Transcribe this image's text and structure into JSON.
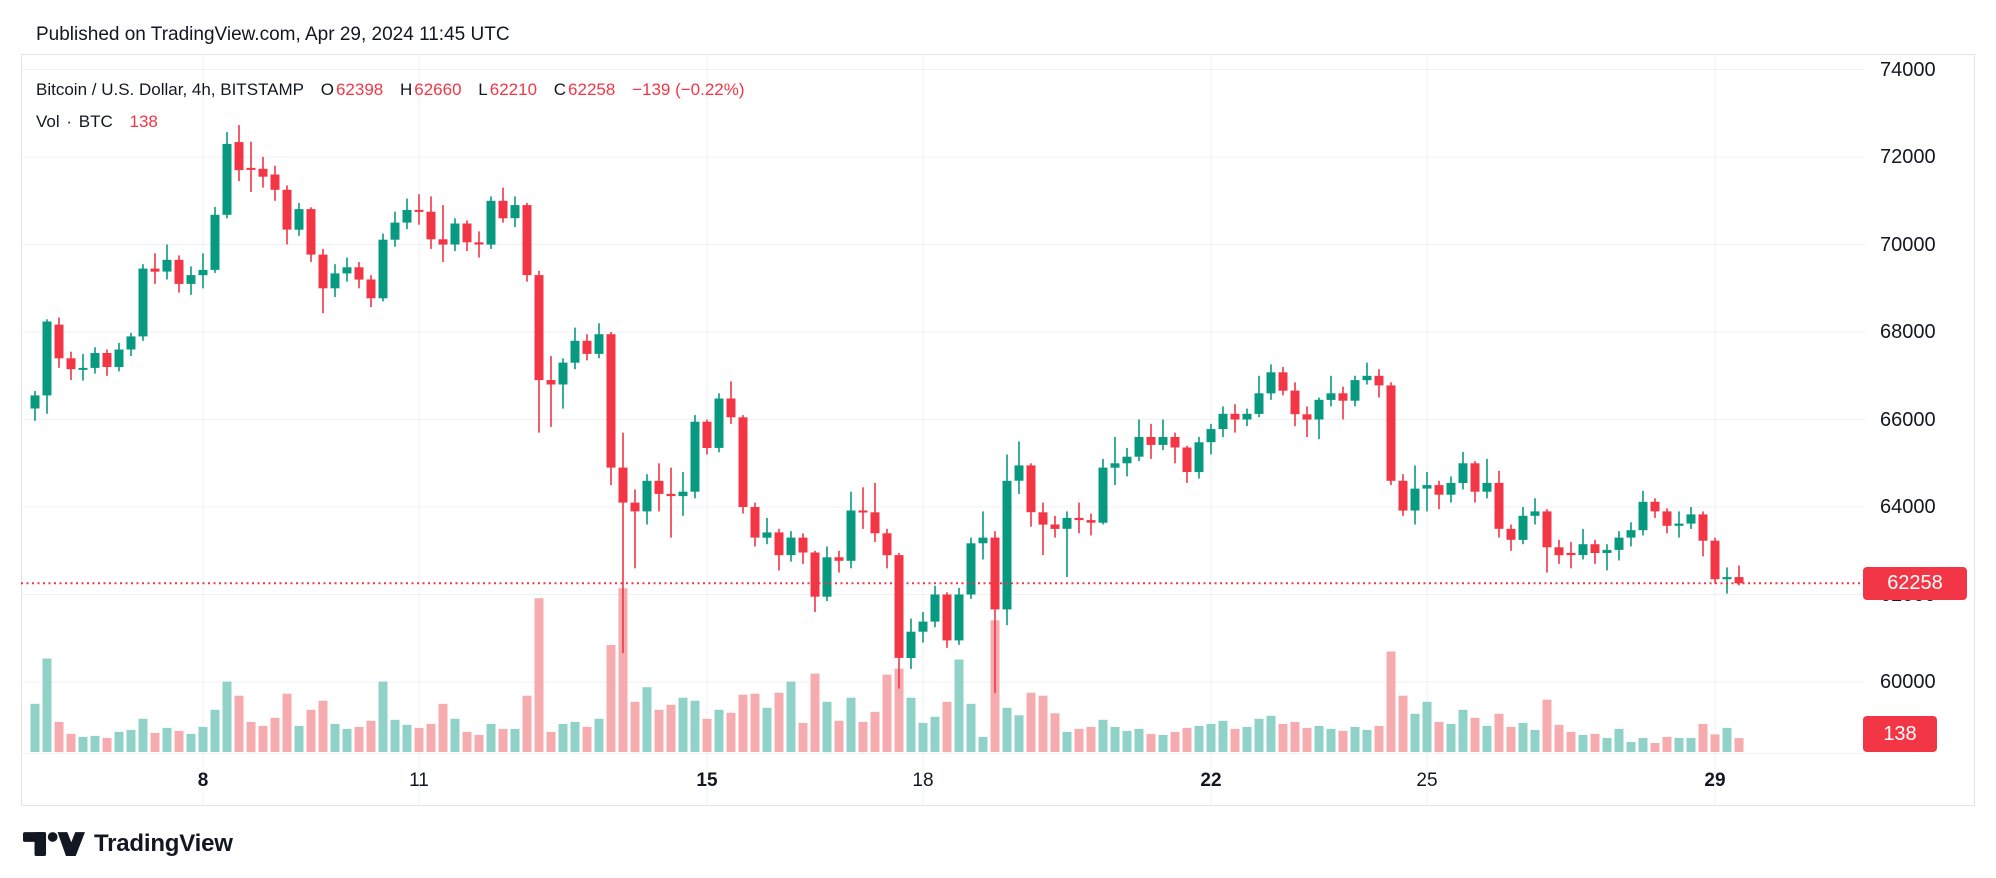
{
  "header": {
    "published": "Published on TradingView.com, Apr 29, 2024 11:45 UTC"
  },
  "legend": {
    "series_title": "Bitcoin / U.S. Dollar, 4h, BITSTAMP",
    "o_label": "O",
    "o_value": "62398",
    "h_label": "H",
    "h_value": "62660",
    "l_label": "L",
    "l_value": "62210",
    "c_label": "C",
    "c_value": "62258",
    "change": "−139 (−0.22%)",
    "vol_label": "Vol",
    "vol_sep": "·",
    "vol_unit": "BTC",
    "vol_value": "138"
  },
  "axes": {
    "price_label": "62258",
    "volume_label": "138"
  },
  "footer": {
    "logo_text": "TradingView"
  },
  "colors": {
    "up": "#089981",
    "down": "#f23645",
    "volume_up": "#90d2c7",
    "volume_down": "#f6abae",
    "accent_red": "#f23645",
    "grid": "#edf0f4",
    "border": "#e0e3eb",
    "text": "#131722"
  },
  "chart_data": {
    "type": "candlestick",
    "title": "Bitcoin / U.S. Dollar",
    "exchange": "BITSTAMP",
    "interval": "4h",
    "volume_unit": "BTC",
    "last_price": 62258,
    "last_change": -139,
    "last_change_pct": -0.22,
    "last_volume": 138,
    "ylim_visible": [
      59500,
      74400
    ],
    "y_gridlines": [
      74000,
      72000,
      70000,
      68000,
      66000,
      64000,
      62000,
      60000
    ],
    "x_ticks": [
      {
        "label": "8",
        "idx": 14,
        "bold": true
      },
      {
        "label": "11",
        "idx": 32,
        "bold": false
      },
      {
        "label": "15",
        "idx": 56,
        "bold": true
      },
      {
        "label": "18",
        "idx": 74,
        "bold": false
      },
      {
        "label": "22",
        "idx": 98,
        "bold": true
      },
      {
        "label": "25",
        "idx": 116,
        "bold": false
      },
      {
        "label": "29",
        "idx": 140,
        "bold": true
      }
    ],
    "candles": [
      [
        "Apr 5 16:00",
        66250,
        66650,
        65970,
        66550,
        480
      ],
      [
        "Apr 5 20:00",
        66550,
        68290,
        66130,
        68240,
        930
      ],
      [
        "Apr 6 00:00",
        68170,
        68330,
        67180,
        67400,
        300
      ],
      [
        "Apr 6 04:00",
        67400,
        67550,
        66900,
        67150,
        180
      ],
      [
        "Apr 6 08:00",
        67150,
        67500,
        66890,
        67180,
        150
      ],
      [
        "Apr 6 12:00",
        67180,
        67650,
        67050,
        67520,
        160
      ],
      [
        "Apr 6 16:00",
        67520,
        67600,
        67000,
        67200,
        140
      ],
      [
        "Apr 6 20:00",
        67200,
        67750,
        67100,
        67600,
        200
      ],
      [
        "Apr 7 00:00",
        67600,
        67980,
        67450,
        67900,
        220
      ],
      [
        "Apr 7 04:00",
        67900,
        69550,
        67800,
        69450,
        330
      ],
      [
        "Apr 7 08:00",
        69450,
        69800,
        69100,
        69380,
        190
      ],
      [
        "Apr 7 12:00",
        69380,
        70000,
        69200,
        69650,
        240
      ],
      [
        "Apr 7 16:00",
        69650,
        69750,
        68900,
        69100,
        210
      ],
      [
        "Apr 7 20:00",
        69100,
        69500,
        68850,
        69300,
        180
      ],
      [
        "Apr 8 00:00",
        69300,
        69800,
        69000,
        69420,
        250
      ],
      [
        "Apr 8 04:00",
        69420,
        70860,
        69350,
        70680,
        420
      ],
      [
        "Apr 8 08:00",
        70680,
        72570,
        70600,
        72300,
        700
      ],
      [
        "Apr 8 12:00",
        72340,
        72730,
        71450,
        71700,
        560
      ],
      [
        "Apr 8 16:00",
        71750,
        72350,
        71200,
        71730,
        300
      ],
      [
        "Apr 8 20:00",
        71730,
        72000,
        71300,
        71550,
        260
      ],
      [
        "Apr 9 00:00",
        71600,
        71800,
        71000,
        71250,
        340
      ],
      [
        "Apr 9 04:00",
        71250,
        71350,
        70000,
        70340,
        580
      ],
      [
        "Apr 9 08:00",
        70340,
        70950,
        70200,
        70810,
        260
      ],
      [
        "Apr 9 12:00",
        70810,
        70850,
        69600,
        69770,
        420
      ],
      [
        "Apr 9 16:00",
        69770,
        69900,
        68430,
        69000,
        510
      ],
      [
        "Apr 9 20:00",
        69000,
        69550,
        68800,
        69340,
        280
      ],
      [
        "Apr 10 00:00",
        69340,
        69700,
        69150,
        69480,
        230
      ],
      [
        "Apr 10 04:00",
        69480,
        69600,
        69000,
        69200,
        250
      ],
      [
        "Apr 10 08:00",
        69200,
        69300,
        68570,
        68770,
        310
      ],
      [
        "Apr 10 12:00",
        68770,
        70250,
        68700,
        70110,
        700
      ],
      [
        "Apr 10 16:00",
        70110,
        70750,
        69950,
        70500,
        320
      ],
      [
        "Apr 10 20:00",
        70500,
        71050,
        70350,
        70790,
        270
      ],
      [
        "Apr 11 00:00",
        70790,
        71150,
        70450,
        70750,
        240
      ],
      [
        "Apr 11 04:00",
        70750,
        71100,
        69900,
        70120,
        280
      ],
      [
        "Apr 11 08:00",
        70120,
        70900,
        69600,
        70000,
        480
      ],
      [
        "Apr 11 12:00",
        70000,
        70600,
        69850,
        70480,
        330
      ],
      [
        "Apr 11 16:00",
        70480,
        70550,
        69850,
        70050,
        200
      ],
      [
        "Apr 11 20:00",
        70050,
        70300,
        69700,
        70000,
        170
      ],
      [
        "Apr 12 00:00",
        70000,
        71100,
        69900,
        71000,
        280
      ],
      [
        "Apr 12 04:00",
        71000,
        71300,
        70500,
        70600,
        230
      ],
      [
        "Apr 12 08:00",
        70600,
        71100,
        70400,
        70900,
        230
      ],
      [
        "Apr 12 12:00",
        70900,
        70950,
        69150,
        69300,
        560
      ],
      [
        "Apr 12 16:00",
        69300,
        69400,
        65700,
        66900,
        1530
      ],
      [
        "Apr 12 20:00",
        66900,
        67450,
        65830,
        66800,
        200
      ],
      [
        "Apr 13 00:00",
        66800,
        67400,
        66250,
        67300,
        280
      ],
      [
        "Apr 13 04:00",
        67300,
        68100,
        67150,
        67800,
        300
      ],
      [
        "Apr 13 08:00",
        67800,
        67950,
        67350,
        67500,
        250
      ],
      [
        "Apr 13 12:00",
        67500,
        68200,
        67400,
        67950,
        330
      ],
      [
        "Apr 13 16:00",
        67950,
        68000,
        64500,
        64900,
        1065
      ],
      [
        "Apr 13 20:00",
        64900,
        65700,
        60660,
        64100,
        1630
      ],
      [
        "Apr 14 00:00",
        64100,
        64400,
        62600,
        63900,
        500
      ],
      [
        "Apr 14 04:00",
        63900,
        64750,
        63600,
        64600,
        645
      ],
      [
        "Apr 14 08:00",
        64600,
        65000,
        63900,
        64300,
        420
      ],
      [
        "Apr 14 12:00",
        64300,
        64900,
        63300,
        64250,
        470
      ],
      [
        "Apr 14 16:00",
        64250,
        64800,
        63800,
        64350,
        540
      ],
      [
        "Apr 14 20:00",
        64350,
        66100,
        64200,
        65950,
        510
      ],
      [
        "Apr 15 00:00",
        65950,
        66000,
        65200,
        65350,
        330
      ],
      [
        "Apr 15 04:00",
        65350,
        66600,
        65250,
        66480,
        420
      ],
      [
        "Apr 15 08:00",
        66480,
        66870,
        65900,
        66050,
        390
      ],
      [
        "Apr 15 12:00",
        66050,
        66100,
        63850,
        64000,
        570
      ],
      [
        "Apr 15 16:00",
        64000,
        64100,
        63100,
        63300,
        580
      ],
      [
        "Apr 15 20:00",
        63300,
        63750,
        63150,
        63420,
        440
      ],
      [
        "Apr 16 00:00",
        63420,
        63500,
        62550,
        62900,
        590
      ],
      [
        "Apr 16 04:00",
        62900,
        63450,
        62750,
        63300,
        700
      ],
      [
        "Apr 16 08:00",
        63300,
        63400,
        62700,
        62960,
        290
      ],
      [
        "Apr 16 12:00",
        62960,
        63000,
        61600,
        61950,
        780
      ],
      [
        "Apr 16 16:00",
        61950,
        63100,
        61850,
        62850,
        500
      ],
      [
        "Apr 16 20:00",
        62850,
        63000,
        62500,
        62770,
        310
      ],
      [
        "Apr 17 00:00",
        62770,
        64350,
        62600,
        63920,
        540
      ],
      [
        "Apr 17 04:00",
        63920,
        64450,
        63500,
        63880,
        300
      ],
      [
        "Apr 17 08:00",
        63880,
        64550,
        63200,
        63400,
        400
      ],
      [
        "Apr 17 12:00",
        63400,
        63500,
        62600,
        62900,
        770
      ],
      [
        "Apr 17 16:00",
        62900,
        62950,
        59850,
        60550,
        830
      ],
      [
        "Apr 17 20:00",
        60550,
        61450,
        60300,
        61150,
        540
      ],
      [
        "Apr 18 00:00",
        61150,
        61600,
        60900,
        61380,
        290
      ],
      [
        "Apr 18 04:00",
        61380,
        62200,
        61250,
        62000,
        350
      ],
      [
        "Apr 18 08:00",
        62000,
        62050,
        60780,
        60950,
        500
      ],
      [
        "Apr 18 12:00",
        60950,
        62150,
        60850,
        62000,
        920
      ],
      [
        "Apr 18 16:00",
        62000,
        63300,
        61900,
        63170,
        480
      ],
      [
        "Apr 18 20:00",
        63170,
        63900,
        62800,
        63300,
        150
      ],
      [
        "Apr 19 00:00",
        63300,
        63450,
        59750,
        61660,
        1310
      ],
      [
        "Apr 19 04:00",
        61660,
        65200,
        61300,
        64600,
        440
      ],
      [
        "Apr 19 08:00",
        64600,
        65500,
        64300,
        64950,
        365
      ],
      [
        "Apr 19 12:00",
        64950,
        65000,
        63550,
        63880,
        590
      ],
      [
        "Apr 19 16:00",
        63880,
        64100,
        62900,
        63600,
        560
      ],
      [
        "Apr 19 20:00",
        63600,
        63800,
        63300,
        63500,
        385
      ],
      [
        "Apr 20 00:00",
        63500,
        63900,
        62400,
        63750,
        200
      ],
      [
        "Apr 20 04:00",
        63750,
        64100,
        63400,
        63700,
        230
      ],
      [
        "Apr 20 08:00",
        63700,
        63850,
        63350,
        63640,
        250
      ],
      [
        "Apr 20 12:00",
        63640,
        65100,
        63600,
        64900,
        320
      ],
      [
        "Apr 20 16:00",
        64900,
        65600,
        64500,
        65000,
        250
      ],
      [
        "Apr 20 20:00",
        65000,
        65350,
        64700,
        65150,
        210
      ],
      [
        "Apr 21 00:00",
        65150,
        66000,
        65050,
        65600,
        230
      ],
      [
        "Apr 21 04:00",
        65600,
        65900,
        65100,
        65420,
        180
      ],
      [
        "Apr 21 08:00",
        65420,
        66000,
        65300,
        65600,
        170
      ],
      [
        "Apr 21 12:00",
        65600,
        65700,
        65000,
        65360,
        200
      ],
      [
        "Apr 21 16:00",
        65360,
        65400,
        64550,
        64800,
        240
      ],
      [
        "Apr 21 20:00",
        64800,
        65600,
        64650,
        65480,
        260
      ],
      [
        "Apr 22 00:00",
        65480,
        65900,
        65200,
        65780,
        280
      ],
      [
        "Apr 22 04:00",
        65780,
        66300,
        65600,
        66130,
        310
      ],
      [
        "Apr 22 08:00",
        66130,
        66350,
        65700,
        66000,
        230
      ],
      [
        "Apr 22 12:00",
        66000,
        66250,
        65850,
        66130,
        250
      ],
      [
        "Apr 22 16:00",
        66130,
        67000,
        66050,
        66600,
        330
      ],
      [
        "Apr 22 20:00",
        66600,
        67260,
        66450,
        67080,
        360
      ],
      [
        "Apr 23 00:00",
        67080,
        67200,
        66550,
        66660,
        280
      ],
      [
        "Apr 23 04:00",
        66660,
        66850,
        65850,
        66120,
        300
      ],
      [
        "Apr 23 08:00",
        66120,
        66300,
        65600,
        66000,
        240
      ],
      [
        "Apr 23 12:00",
        66000,
        66500,
        65550,
        66450,
        260
      ],
      [
        "Apr 23 16:00",
        66450,
        67000,
        66300,
        66600,
        230
      ],
      [
        "Apr 23 20:00",
        66600,
        66750,
        66000,
        66430,
        210
      ],
      [
        "Apr 24 00:00",
        66430,
        67000,
        66300,
        66900,
        250
      ],
      [
        "Apr 24 04:00",
        66900,
        67300,
        66800,
        67000,
        220
      ],
      [
        "Apr 24 08:00",
        67000,
        67150,
        66500,
        66780,
        260
      ],
      [
        "Apr 24 12:00",
        66780,
        66850,
        64500,
        64600,
        1000
      ],
      [
        "Apr 24 16:00",
        64600,
        64750,
        63800,
        63920,
        560
      ],
      [
        "Apr 24 20:00",
        63920,
        64950,
        63600,
        64420,
        380
      ],
      [
        "Apr 25 00:00",
        64420,
        64800,
        63900,
        64500,
        500
      ],
      [
        "Apr 25 04:00",
        64500,
        64600,
        63950,
        64280,
        300
      ],
      [
        "Apr 25 08:00",
        64280,
        64700,
        64100,
        64550,
        280
      ],
      [
        "Apr 25 12:00",
        64550,
        65260,
        64400,
        65000,
        420
      ],
      [
        "Apr 25 16:00",
        65000,
        65050,
        64100,
        64350,
        340
      ],
      [
        "Apr 25 20:00",
        64350,
        65100,
        64200,
        64550,
        260
      ],
      [
        "Apr 26 00:00",
        64550,
        64830,
        63300,
        63500,
        380
      ],
      [
        "Apr 26 04:00",
        63500,
        63600,
        63000,
        63250,
        250
      ],
      [
        "Apr 26 08:00",
        63250,
        64000,
        63150,
        63800,
        290
      ],
      [
        "Apr 26 12:00",
        63800,
        64200,
        63600,
        63900,
        220
      ],
      [
        "Apr 26 16:00",
        63900,
        63950,
        62500,
        63080,
        520
      ],
      [
        "Apr 26 20:00",
        63080,
        63250,
        62700,
        62900,
        270
      ],
      [
        "Apr 27 00:00",
        62950,
        63200,
        62600,
        62900,
        200
      ],
      [
        "Apr 27 04:00",
        62900,
        63500,
        62800,
        63150,
        170
      ],
      [
        "Apr 27 08:00",
        63150,
        63250,
        62700,
        62950,
        180
      ],
      [
        "Apr 27 12:00",
        62950,
        63150,
        62550,
        63020,
        140
      ],
      [
        "Apr 27 16:00",
        63020,
        63450,
        62780,
        63300,
        230
      ],
      [
        "Apr 27 20:00",
        63300,
        63650,
        63100,
        63470,
        100
      ],
      [
        "Apr 28 00:00",
        63470,
        64370,
        63350,
        64120,
        140
      ],
      [
        "Apr 28 04:00",
        64120,
        64200,
        63750,
        63900,
        90
      ],
      [
        "Apr 28 08:00",
        63900,
        63970,
        63400,
        63570,
        150
      ],
      [
        "Apr 28 12:00",
        63570,
        63900,
        63300,
        63620,
        140
      ],
      [
        "Apr 28 16:00",
        63620,
        64000,
        63500,
        63830,
        140
      ],
      [
        "Apr 28 20:00",
        63830,
        63900,
        62870,
        63230,
        280
      ],
      [
        "Apr 29 00:00",
        63230,
        63300,
        62250,
        62350,
        175
      ],
      [
        "Apr 29 04:00",
        62350,
        62620,
        62020,
        62397,
        240
      ],
      [
        "Apr 29 08:00",
        62398,
        62660,
        62210,
        62258,
        138
      ]
    ]
  }
}
